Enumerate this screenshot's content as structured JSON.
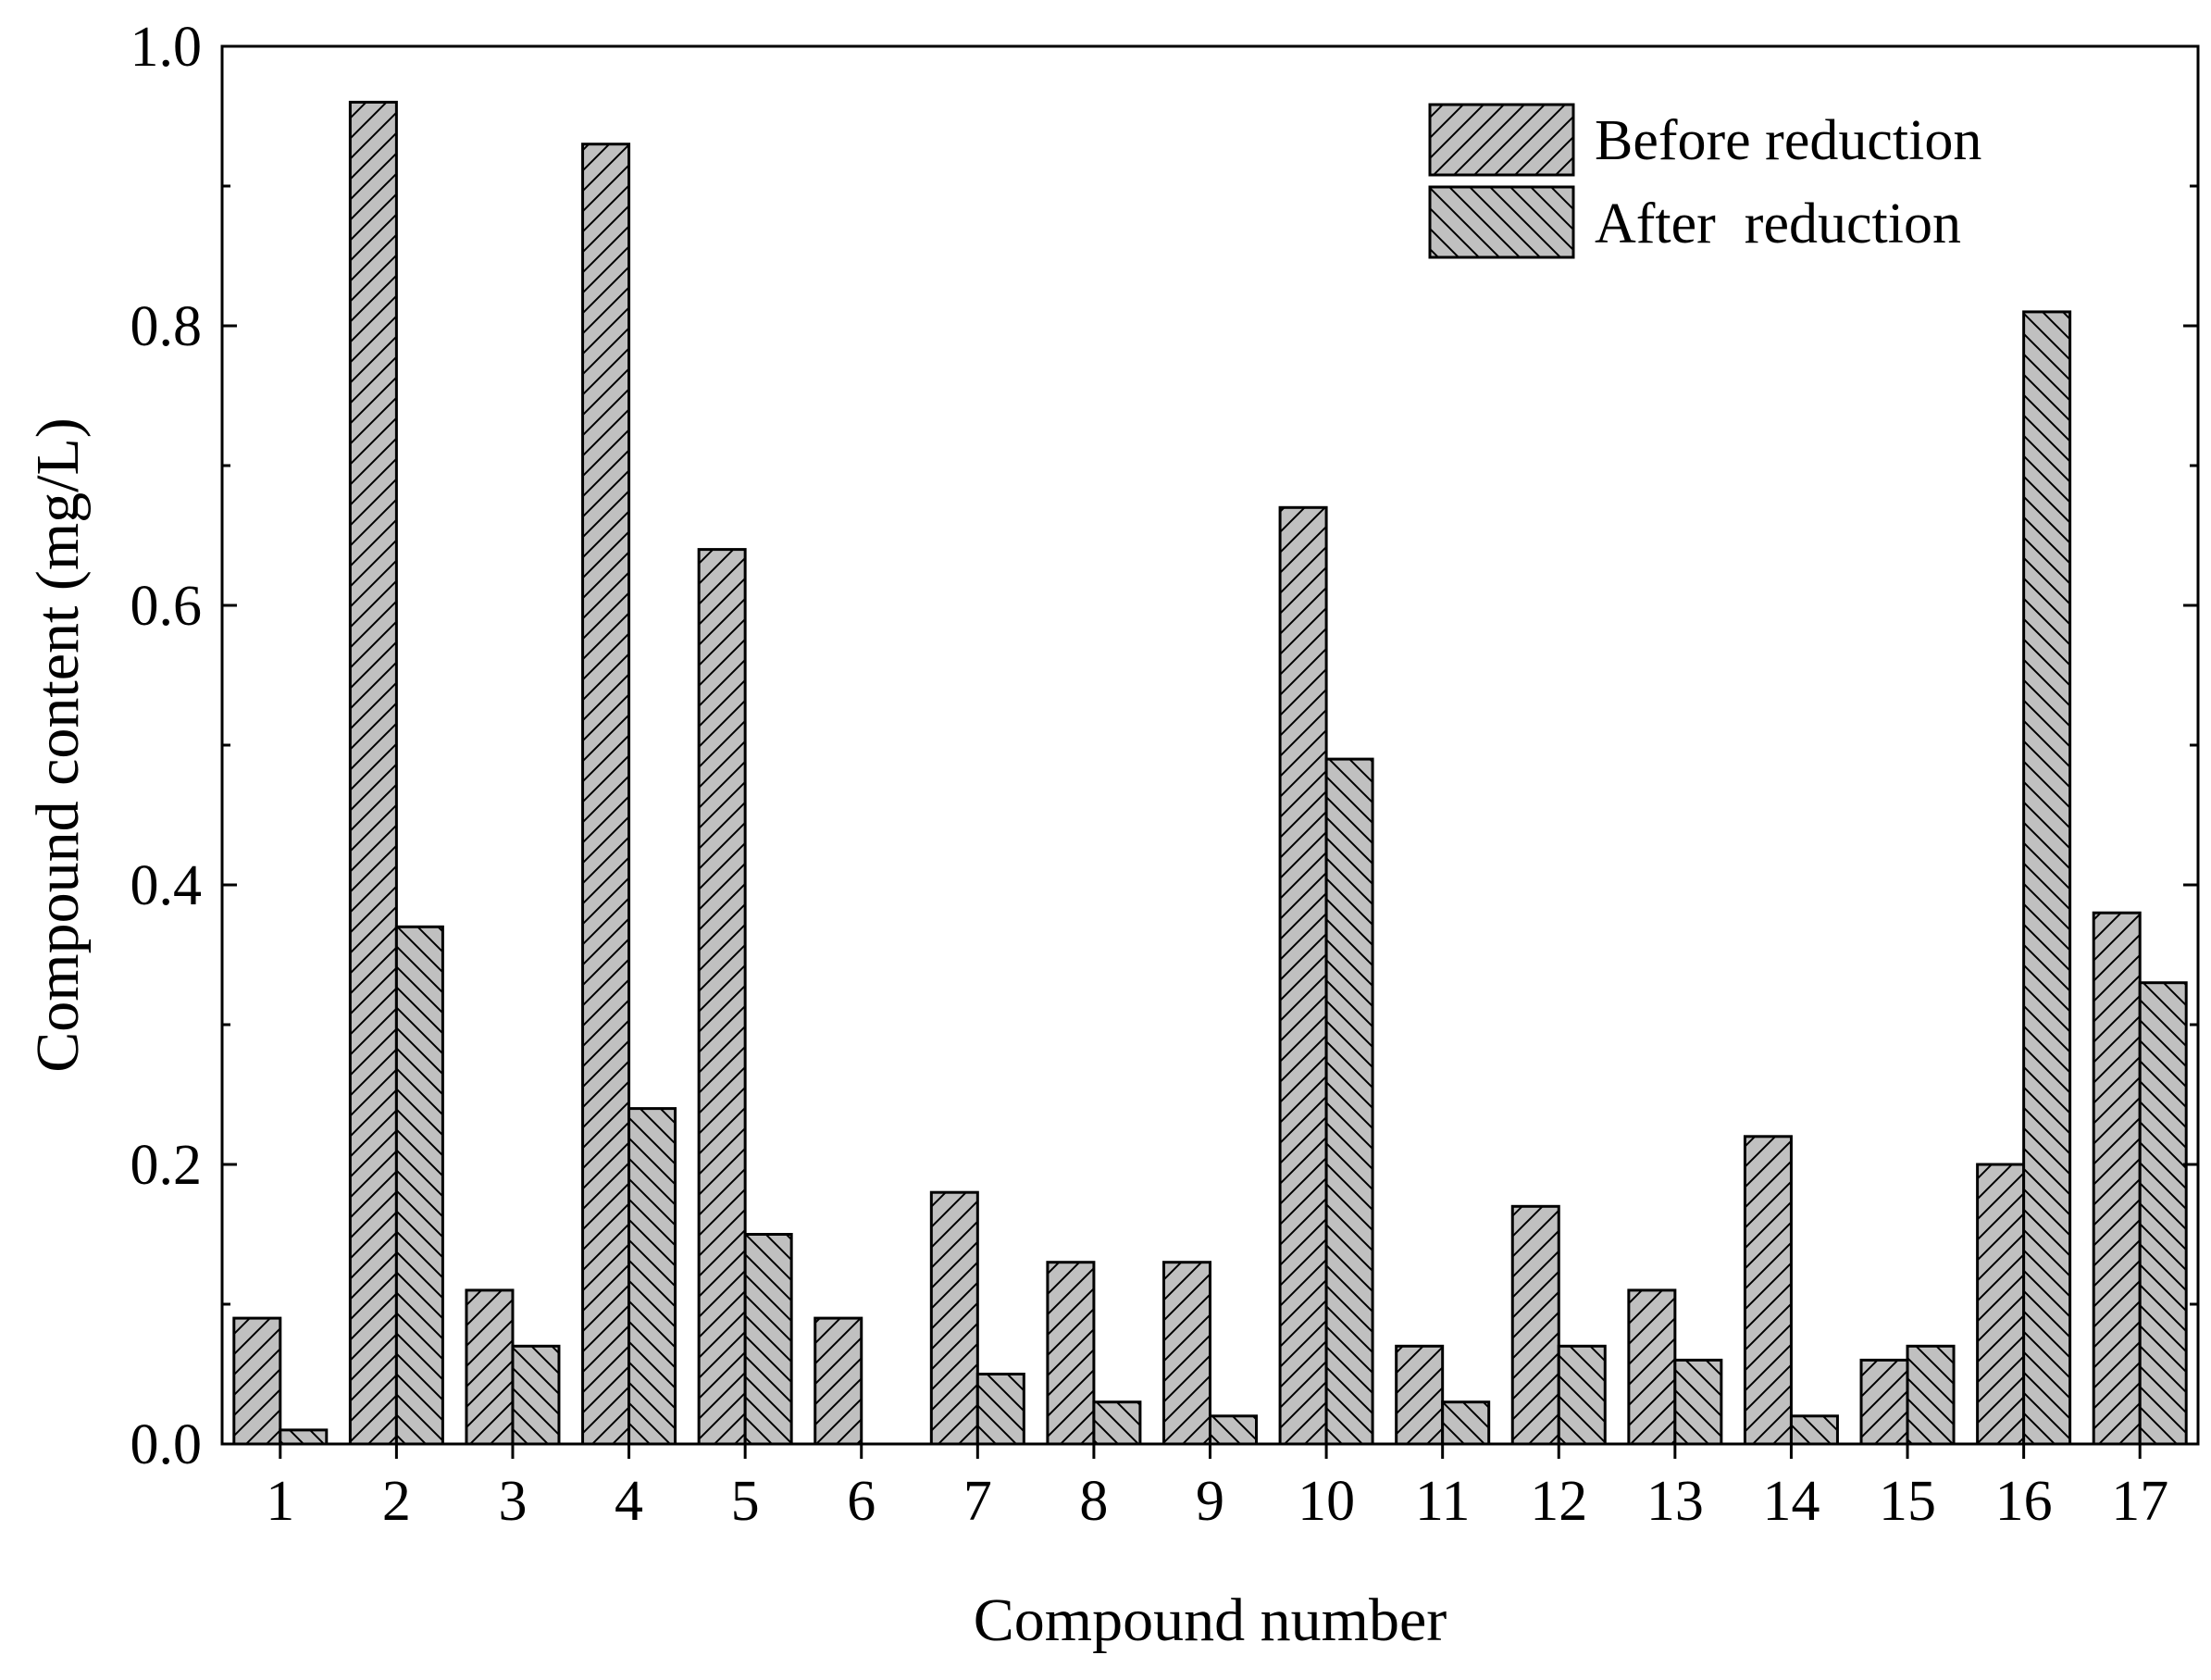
{
  "chart_data": {
    "type": "bar",
    "xlabel": "Compound number",
    "ylabel": "Compound content (mg/L)",
    "ylim": [
      0.0,
      1.0
    ],
    "yticks": [
      "0.0",
      "0.2",
      "0.4",
      "0.6",
      "0.8",
      "1.0"
    ],
    "categories": [
      "1",
      "2",
      "3",
      "4",
      "5",
      "6",
      "7",
      "8",
      "9",
      "10",
      "11",
      "12",
      "13",
      "14",
      "15",
      "16",
      "17"
    ],
    "series": [
      {
        "name": "Before reduction",
        "hatch": "forward-diagonal",
        "color": "#c0c0c0",
        "values": [
          0.09,
          0.96,
          0.11,
          0.93,
          0.64,
          0.09,
          0.18,
          0.13,
          0.13,
          0.67,
          0.07,
          0.17,
          0.11,
          0.22,
          0.06,
          0.2,
          0.38
        ]
      },
      {
        "name": "After  reduction",
        "hatch": "back-diagonal",
        "color": "#c0c0c0",
        "values": [
          0.01,
          0.37,
          0.07,
          0.24,
          0.15,
          0.0,
          0.05,
          0.03,
          0.02,
          0.49,
          0.03,
          0.07,
          0.06,
          0.02,
          0.07,
          0.81,
          0.33
        ]
      }
    ],
    "legend_position": "top-right",
    "grid": false
  }
}
